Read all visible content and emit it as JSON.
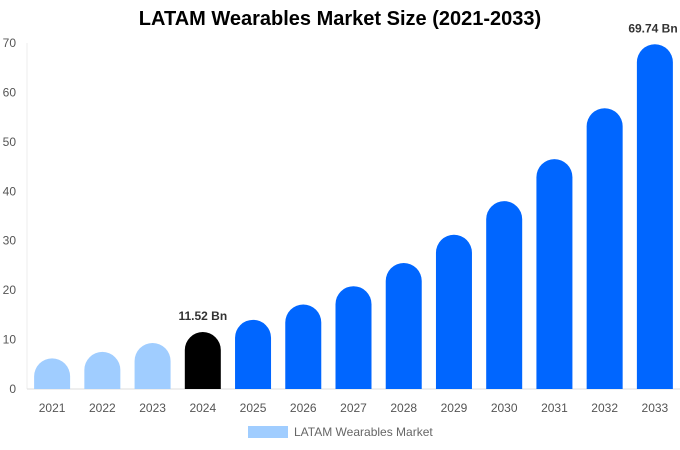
{
  "chart_data": {
    "type": "bar",
    "title": "LATAM Wearables Market Size (2021-2033)",
    "categories": [
      "2021",
      "2022",
      "2023",
      "2024",
      "2025",
      "2026",
      "2027",
      "2028",
      "2029",
      "2030",
      "2031",
      "2032",
      "2033"
    ],
    "series": [
      {
        "name": "LATAM Wearables Market",
        "values": [
          6.2,
          7.5,
          9.3,
          11.52,
          14.0,
          17.1,
          20.8,
          25.5,
          31.2,
          38.0,
          46.5,
          56.8,
          69.74
        ]
      }
    ],
    "data_labels": [
      {
        "category": "2024",
        "text": "11.52 Bn"
      },
      {
        "category": "2033",
        "text": "69.74 Bn"
      }
    ],
    "ylim": [
      0,
      70
    ],
    "yticks": [
      0,
      10,
      20,
      30,
      40,
      50,
      60,
      70
    ],
    "grid": false,
    "legend_position": "bottom",
    "colors": {
      "historical": "#a0cdff",
      "current": "#000000",
      "forecast": "#0066ff"
    }
  }
}
